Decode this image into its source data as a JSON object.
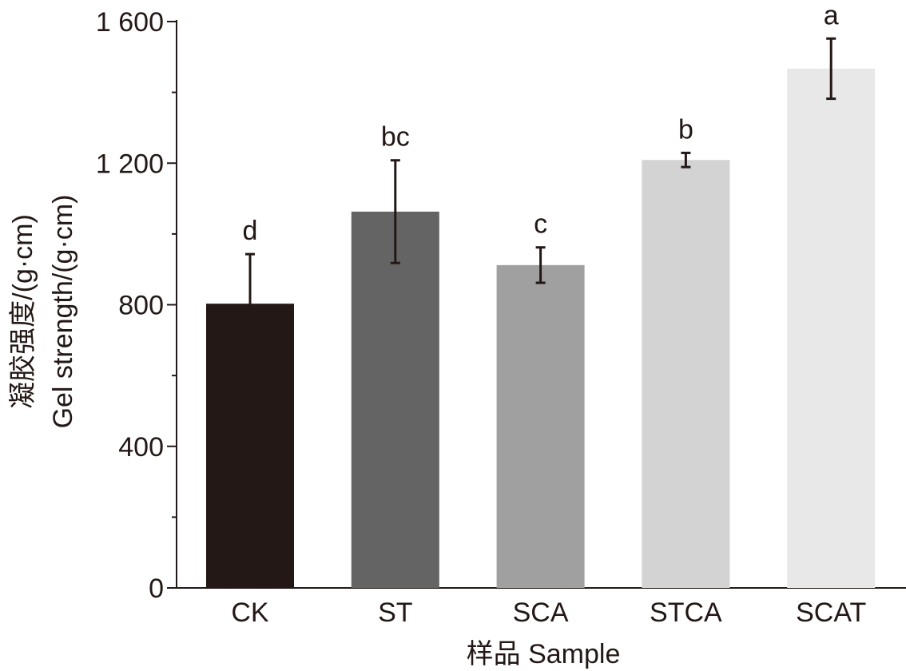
{
  "chart_data": {
    "type": "bar",
    "title": "",
    "categories": [
      "CK",
      "ST",
      "SCA",
      "STCA",
      "SCAT"
    ],
    "values": [
      803,
      1063,
      912,
      1209,
      1467
    ],
    "errors": [
      140,
      145,
      50,
      20,
      85
    ],
    "significance": [
      "d",
      "bc",
      "c",
      "b",
      "a"
    ],
    "colors": [
      "#231816",
      "#646464",
      "#a0a0a0",
      "#d3d3d3",
      "#e8e8e8"
    ],
    "xlabel": "样品 Sample",
    "ylabel_lines": [
      "凝胶强度/(g·cm)",
      "Gel strength/(g·cm)"
    ],
    "ylim": [
      0,
      1600
    ],
    "yticks": [
      0,
      400,
      800,
      1200,
      1600
    ],
    "ytick_labels": [
      "0",
      "400",
      "800",
      "1 200",
      "1 600"
    ],
    "minor_tick_step": 200,
    "grid": false
  }
}
